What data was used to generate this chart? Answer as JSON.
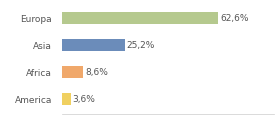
{
  "categories": [
    "Europa",
    "Asia",
    "Africa",
    "America"
  ],
  "values": [
    62.6,
    25.2,
    8.6,
    3.6
  ],
  "labels": [
    "62,6%",
    "25,2%",
    "8,6%",
    "3,6%"
  ],
  "bar_colors": [
    "#b5c98e",
    "#6b8cba",
    "#f0a86b",
    "#f0d060"
  ],
  "background_color": "#ffffff",
  "xlim": [
    0,
    85
  ],
  "bar_height": 0.45,
  "label_fontsize": 6.5,
  "tick_fontsize": 6.5,
  "label_color": "#555555",
  "tick_color": "#555555"
}
